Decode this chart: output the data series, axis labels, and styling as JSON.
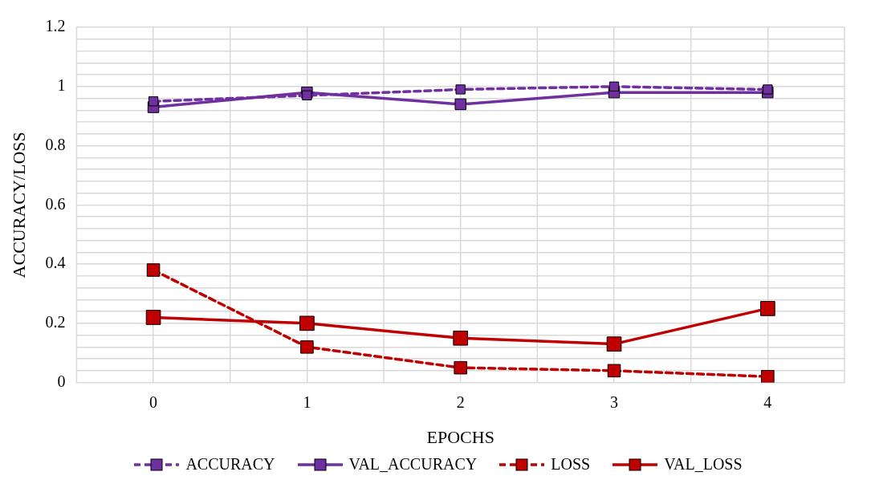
{
  "chart_data": {
    "type": "line",
    "xlabel": "EPOCHS",
    "ylabel": "ACCURACY/LOSS",
    "categories": [
      "0",
      "1",
      "2",
      "3",
      "4"
    ],
    "series": [
      {
        "name": "ACCURACY",
        "color": "#7030a0",
        "line_style": "dashed",
        "values": [
          0.95,
          0.97,
          0.99,
          1.0,
          0.99
        ]
      },
      {
        "name": "VAL_ACCURACY",
        "color": "#7030a0",
        "line_style": "solid",
        "values": [
          0.93,
          0.98,
          0.94,
          0.98,
          0.98
        ]
      },
      {
        "name": "LOSS",
        "color": "#c00000",
        "line_style": "dashed",
        "values": [
          0.38,
          0.12,
          0.05,
          0.04,
          0.02
        ]
      },
      {
        "name": "VAL_LOSS",
        "color": "#c00000",
        "line_style": "solid",
        "values": [
          0.22,
          0.2,
          0.15,
          0.13,
          0.25
        ]
      }
    ],
    "ylim": [
      0,
      1.2
    ],
    "yticks": [
      0,
      {
        "value": 0.04,
        "label": null
      },
      {
        "value": 0.08,
        "label": null
      },
      {
        "value": 0.12,
        "label": null
      },
      {
        "value": 0.16,
        "label": null
      },
      0.2,
      {
        "value": 0.24,
        "label": null
      },
      {
        "value": 0.28,
        "label": null
      },
      {
        "value": 0.32,
        "label": null
      },
      {
        "value": 0.36,
        "label": null
      },
      0.4,
      {
        "value": 0.44,
        "label": null
      },
      {
        "value": 0.48,
        "label": null
      },
      {
        "value": 0.52,
        "label": null
      },
      {
        "value": 0.56,
        "label": null
      },
      0.6,
      {
        "value": 0.64,
        "label": null
      },
      {
        "value": 0.68,
        "label": null
      },
      {
        "value": 0.72,
        "label": null
      },
      {
        "value": 0.76,
        "label": null
      },
      0.8,
      {
        "value": 0.84,
        "label": null
      },
      {
        "value": 0.88,
        "label": null
      },
      {
        "value": 0.92,
        "label": null
      },
      {
        "value": 0.96,
        "label": null
      },
      1,
      {
        "value": 1.04,
        "label": null
      },
      {
        "value": 1.08,
        "label": null
      },
      {
        "value": 1.12,
        "label": null
      },
      {
        "value": 1.16,
        "label": null
      },
      1.2
    ],
    "grid": true,
    "legend": "bottom",
    "marker": "square"
  }
}
